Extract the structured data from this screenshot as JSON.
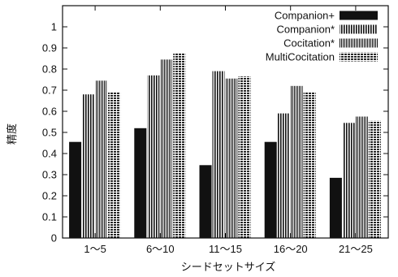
{
  "chart_data": {
    "type": "bar",
    "xlabel": "シードセットサイズ",
    "ylabel": "精度",
    "ylim": [
      0,
      1.1
    ],
    "yticks": [
      "0",
      "0.1",
      "0.2",
      "0.3",
      "0.4",
      "0.5",
      "0.6",
      "0.7",
      "0.8",
      "0.9",
      "1"
    ],
    "categories": [
      "1〜5",
      "6〜10",
      "11〜15",
      "16〜20",
      "21〜25"
    ],
    "legend_position": "top-right",
    "grid": false,
    "series": [
      {
        "name": "Companion+",
        "pattern": "solid",
        "values": [
          0.455,
          0.52,
          0.345,
          0.455,
          0.285
        ]
      },
      {
        "name": "Companion*",
        "pattern": "vertical-stripes",
        "values": [
          0.68,
          0.77,
          0.79,
          0.59,
          0.545
        ]
      },
      {
        "name": "Cocitation*",
        "pattern": "fine-vertical-stripes",
        "values": [
          0.745,
          0.845,
          0.755,
          0.72,
          0.575
        ]
      },
      {
        "name": "MultiCocitation",
        "pattern": "horizontal-dashes",
        "values": [
          0.69,
          0.875,
          0.765,
          0.69,
          0.555
        ]
      }
    ],
    "colors": {
      "ink": "#111111",
      "background": "#ffffff"
    }
  }
}
